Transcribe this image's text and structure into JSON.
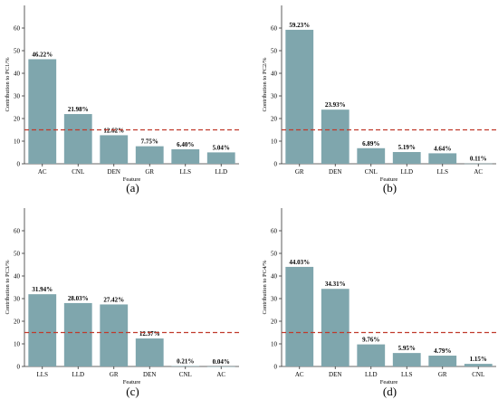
{
  "colors": {
    "bar": "#7fa6ad",
    "threshold": "#c0392b",
    "axis": "#333333",
    "text": "#000000"
  },
  "chart_data": [
    {
      "type": "bar",
      "panel_label": "(a)",
      "xlabel": "Feature",
      "ylabel": "Contribution to PC1/%",
      "ylim": [
        0,
        70
      ],
      "yticks": [
        0,
        10,
        20,
        30,
        40,
        50,
        60
      ],
      "threshold": 15,
      "categories": [
        "AC",
        "CNL",
        "DEN",
        "GR",
        "LLS",
        "LLD"
      ],
      "values": [
        46.22,
        21.98,
        12.62,
        7.75,
        6.4,
        5.04
      ],
      "value_labels": [
        "46.22%",
        "21.98%",
        "12.62%",
        "7.75%",
        "6.40%",
        "5.04%"
      ]
    },
    {
      "type": "bar",
      "panel_label": "(b)",
      "xlabel": "Feature",
      "ylabel": "Contribution to PC2/%",
      "ylim": [
        0,
        70
      ],
      "yticks": [
        0,
        10,
        20,
        30,
        40,
        50,
        60
      ],
      "threshold": 15,
      "categories": [
        "GR",
        "DEN",
        "CNL",
        "LLD",
        "LLS",
        "AC"
      ],
      "values": [
        59.23,
        23.93,
        6.89,
        5.19,
        4.64,
        0.11
      ],
      "value_labels": [
        "59.23%",
        "23.93%",
        "6.89%",
        "5.19%",
        "4.64%",
        "0.11%"
      ]
    },
    {
      "type": "bar",
      "panel_label": "(c)",
      "xlabel": "Feature",
      "ylabel": "Contribution to PC3/%",
      "ylim": [
        0,
        70
      ],
      "yticks": [
        0,
        10,
        20,
        30,
        40,
        50,
        60
      ],
      "threshold": 15,
      "categories": [
        "LLS",
        "LLD",
        "GR",
        "DEN",
        "CNL",
        "AC"
      ],
      "values": [
        31.94,
        28.03,
        27.42,
        12.37,
        0.21,
        0.04
      ],
      "value_labels": [
        "31.94%",
        "28.03%",
        "27.42%",
        "12.37%",
        "0.21%",
        "0.04%"
      ]
    },
    {
      "type": "bar",
      "panel_label": "(d)",
      "xlabel": "Feature",
      "ylabel": "Contribution to PC4/%",
      "ylim": [
        0,
        70
      ],
      "yticks": [
        0,
        10,
        20,
        30,
        40,
        50,
        60
      ],
      "threshold": 15,
      "categories": [
        "AC",
        "DEN",
        "LLD",
        "LLS",
        "GR",
        "CNL"
      ],
      "values": [
        44.03,
        34.31,
        9.76,
        5.95,
        4.79,
        1.15
      ],
      "value_labels": [
        "44.03%",
        "34.31%",
        "9.76%",
        "5.95%",
        "4.79%",
        "1.15%"
      ]
    }
  ]
}
